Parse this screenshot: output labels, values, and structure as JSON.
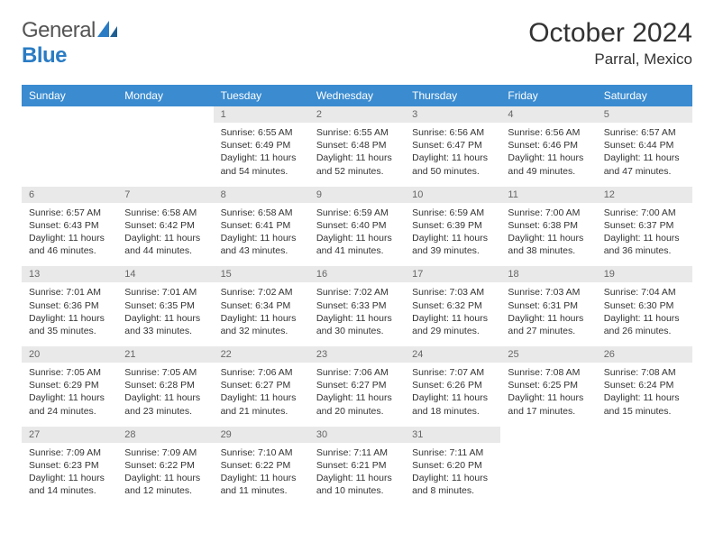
{
  "logo": {
    "word1": "General",
    "word2": "Blue"
  },
  "title": "October 2024",
  "location": "Parral, Mexico",
  "colors": {
    "header_bg": "#3a8bd0",
    "header_text": "#ffffff",
    "row_border": "#2a6ca8",
    "daynum_bg": "#e9e9e9",
    "daynum_text": "#666666",
    "body_text": "#333333",
    "logo_gray": "#555555",
    "logo_blue": "#2a7cc4",
    "page_bg": "#ffffff"
  },
  "font": {
    "family": "Arial",
    "title_size": 30,
    "location_size": 17,
    "weekday_size": 12,
    "daynum_size": 11,
    "content_size": 10.5
  },
  "weekdays": [
    "Sunday",
    "Monday",
    "Tuesday",
    "Wednesday",
    "Thursday",
    "Friday",
    "Saturday"
  ],
  "weeks": [
    [
      null,
      null,
      {
        "n": "1",
        "sr": "Sunrise: 6:55 AM",
        "ss": "Sunset: 6:49 PM",
        "d1": "Daylight: 11 hours",
        "d2": "and 54 minutes."
      },
      {
        "n": "2",
        "sr": "Sunrise: 6:55 AM",
        "ss": "Sunset: 6:48 PM",
        "d1": "Daylight: 11 hours",
        "d2": "and 52 minutes."
      },
      {
        "n": "3",
        "sr": "Sunrise: 6:56 AM",
        "ss": "Sunset: 6:47 PM",
        "d1": "Daylight: 11 hours",
        "d2": "and 50 minutes."
      },
      {
        "n": "4",
        "sr": "Sunrise: 6:56 AM",
        "ss": "Sunset: 6:46 PM",
        "d1": "Daylight: 11 hours",
        "d2": "and 49 minutes."
      },
      {
        "n": "5",
        "sr": "Sunrise: 6:57 AM",
        "ss": "Sunset: 6:44 PM",
        "d1": "Daylight: 11 hours",
        "d2": "and 47 minutes."
      }
    ],
    [
      {
        "n": "6",
        "sr": "Sunrise: 6:57 AM",
        "ss": "Sunset: 6:43 PM",
        "d1": "Daylight: 11 hours",
        "d2": "and 46 minutes."
      },
      {
        "n": "7",
        "sr": "Sunrise: 6:58 AM",
        "ss": "Sunset: 6:42 PM",
        "d1": "Daylight: 11 hours",
        "d2": "and 44 minutes."
      },
      {
        "n": "8",
        "sr": "Sunrise: 6:58 AM",
        "ss": "Sunset: 6:41 PM",
        "d1": "Daylight: 11 hours",
        "d2": "and 43 minutes."
      },
      {
        "n": "9",
        "sr": "Sunrise: 6:59 AM",
        "ss": "Sunset: 6:40 PM",
        "d1": "Daylight: 11 hours",
        "d2": "and 41 minutes."
      },
      {
        "n": "10",
        "sr": "Sunrise: 6:59 AM",
        "ss": "Sunset: 6:39 PM",
        "d1": "Daylight: 11 hours",
        "d2": "and 39 minutes."
      },
      {
        "n": "11",
        "sr": "Sunrise: 7:00 AM",
        "ss": "Sunset: 6:38 PM",
        "d1": "Daylight: 11 hours",
        "d2": "and 38 minutes."
      },
      {
        "n": "12",
        "sr": "Sunrise: 7:00 AM",
        "ss": "Sunset: 6:37 PM",
        "d1": "Daylight: 11 hours",
        "d2": "and 36 minutes."
      }
    ],
    [
      {
        "n": "13",
        "sr": "Sunrise: 7:01 AM",
        "ss": "Sunset: 6:36 PM",
        "d1": "Daylight: 11 hours",
        "d2": "and 35 minutes."
      },
      {
        "n": "14",
        "sr": "Sunrise: 7:01 AM",
        "ss": "Sunset: 6:35 PM",
        "d1": "Daylight: 11 hours",
        "d2": "and 33 minutes."
      },
      {
        "n": "15",
        "sr": "Sunrise: 7:02 AM",
        "ss": "Sunset: 6:34 PM",
        "d1": "Daylight: 11 hours",
        "d2": "and 32 minutes."
      },
      {
        "n": "16",
        "sr": "Sunrise: 7:02 AM",
        "ss": "Sunset: 6:33 PM",
        "d1": "Daylight: 11 hours",
        "d2": "and 30 minutes."
      },
      {
        "n": "17",
        "sr": "Sunrise: 7:03 AM",
        "ss": "Sunset: 6:32 PM",
        "d1": "Daylight: 11 hours",
        "d2": "and 29 minutes."
      },
      {
        "n": "18",
        "sr": "Sunrise: 7:03 AM",
        "ss": "Sunset: 6:31 PM",
        "d1": "Daylight: 11 hours",
        "d2": "and 27 minutes."
      },
      {
        "n": "19",
        "sr": "Sunrise: 7:04 AM",
        "ss": "Sunset: 6:30 PM",
        "d1": "Daylight: 11 hours",
        "d2": "and 26 minutes."
      }
    ],
    [
      {
        "n": "20",
        "sr": "Sunrise: 7:05 AM",
        "ss": "Sunset: 6:29 PM",
        "d1": "Daylight: 11 hours",
        "d2": "and 24 minutes."
      },
      {
        "n": "21",
        "sr": "Sunrise: 7:05 AM",
        "ss": "Sunset: 6:28 PM",
        "d1": "Daylight: 11 hours",
        "d2": "and 23 minutes."
      },
      {
        "n": "22",
        "sr": "Sunrise: 7:06 AM",
        "ss": "Sunset: 6:27 PM",
        "d1": "Daylight: 11 hours",
        "d2": "and 21 minutes."
      },
      {
        "n": "23",
        "sr": "Sunrise: 7:06 AM",
        "ss": "Sunset: 6:27 PM",
        "d1": "Daylight: 11 hours",
        "d2": "and 20 minutes."
      },
      {
        "n": "24",
        "sr": "Sunrise: 7:07 AM",
        "ss": "Sunset: 6:26 PM",
        "d1": "Daylight: 11 hours",
        "d2": "and 18 minutes."
      },
      {
        "n": "25",
        "sr": "Sunrise: 7:08 AM",
        "ss": "Sunset: 6:25 PM",
        "d1": "Daylight: 11 hours",
        "d2": "and 17 minutes."
      },
      {
        "n": "26",
        "sr": "Sunrise: 7:08 AM",
        "ss": "Sunset: 6:24 PM",
        "d1": "Daylight: 11 hours",
        "d2": "and 15 minutes."
      }
    ],
    [
      {
        "n": "27",
        "sr": "Sunrise: 7:09 AM",
        "ss": "Sunset: 6:23 PM",
        "d1": "Daylight: 11 hours",
        "d2": "and 14 minutes."
      },
      {
        "n": "28",
        "sr": "Sunrise: 7:09 AM",
        "ss": "Sunset: 6:22 PM",
        "d1": "Daylight: 11 hours",
        "d2": "and 12 minutes."
      },
      {
        "n": "29",
        "sr": "Sunrise: 7:10 AM",
        "ss": "Sunset: 6:22 PM",
        "d1": "Daylight: 11 hours",
        "d2": "and 11 minutes."
      },
      {
        "n": "30",
        "sr": "Sunrise: 7:11 AM",
        "ss": "Sunset: 6:21 PM",
        "d1": "Daylight: 11 hours",
        "d2": "and 10 minutes."
      },
      {
        "n": "31",
        "sr": "Sunrise: 7:11 AM",
        "ss": "Sunset: 6:20 PM",
        "d1": "Daylight: 11 hours",
        "d2": "and 8 minutes."
      },
      null,
      null
    ]
  ]
}
